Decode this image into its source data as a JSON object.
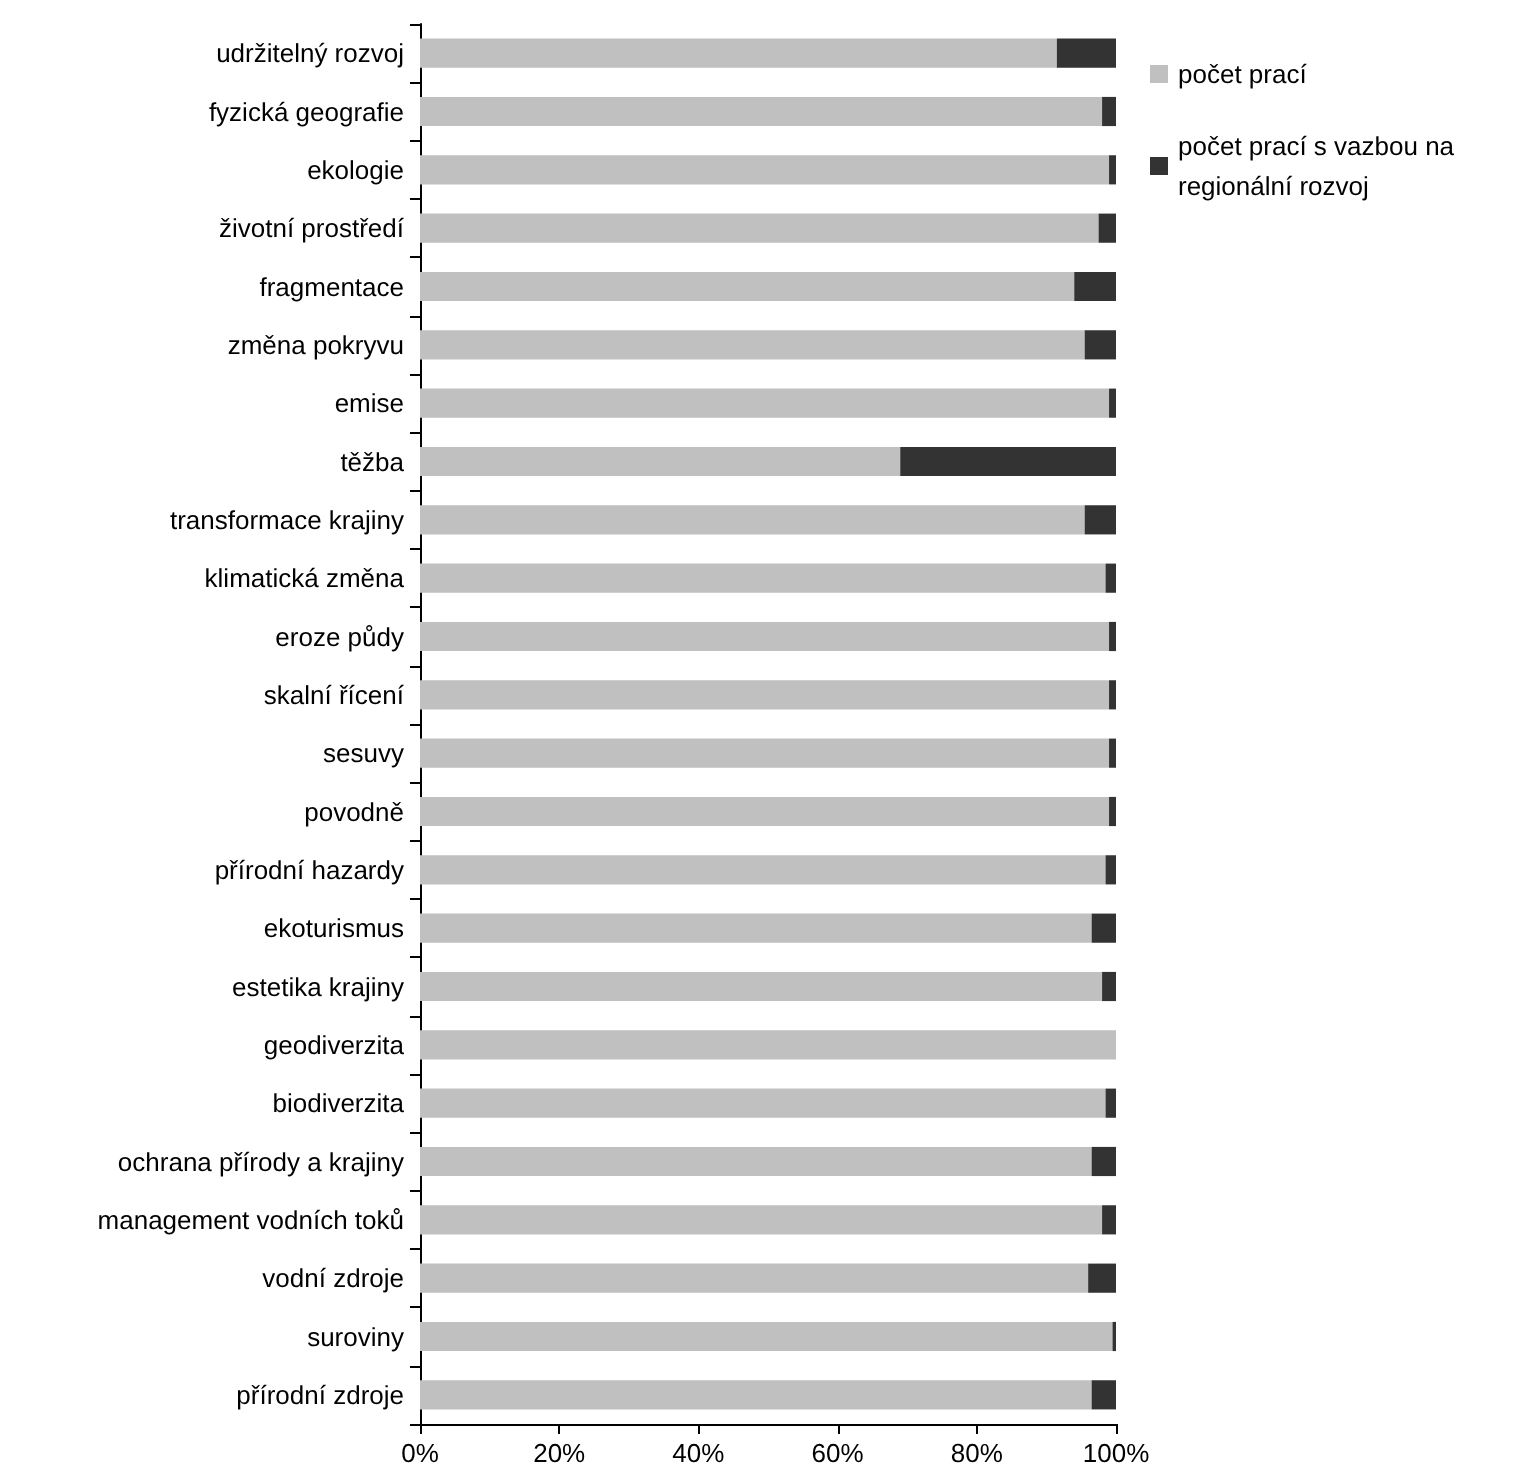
{
  "chart_data": {
    "type": "bar",
    "orientation": "horizontal",
    "stacked": true,
    "categories": [
      "udržitelný rozvoj",
      "fyzická geografie",
      "ekologie",
      "životní prostředí",
      "fragmentace",
      "změna pokryvu",
      "emise",
      "těžba",
      "transformace krajiny",
      "klimatická změna",
      "eroze půdy",
      "skalní řícení",
      "sesuvy",
      "povodně",
      "přírodní hazardy",
      "ekoturismus",
      "estetika krajiny",
      "geodiverzita",
      "biodiverzita",
      "ochrana přírody a krajiny",
      "management vodních toků",
      "vodní zdroje",
      "suroviny",
      "přírodní zdroje"
    ],
    "series": [
      {
        "name": "počet prací",
        "color": "#c0c0c0",
        "values": [
          91.5,
          98,
          99,
          97.5,
          94,
          95.5,
          99,
          69,
          95.5,
          98.5,
          99,
          99,
          99,
          99,
          98.5,
          96.5,
          98,
          100,
          98.5,
          96.5,
          98,
          96,
          99.5,
          96.5
        ]
      },
      {
        "name": "počet prací s vazbou na regionální rozvoj",
        "color": "#333333",
        "values": [
          8.5,
          2,
          1,
          2.5,
          6,
          4.5,
          1,
          31,
          4.5,
          1.5,
          1,
          1,
          1,
          1,
          1.5,
          3.5,
          2,
          0,
          1.5,
          3.5,
          2,
          4,
          0.5,
          3.5
        ]
      }
    ],
    "xlim": [
      0,
      100
    ],
    "xticks": [
      {
        "value": 0,
        "label": "0%"
      },
      {
        "value": 20,
        "label": "20%"
      },
      {
        "value": 40,
        "label": "40%"
      },
      {
        "value": 60,
        "label": "60%"
      },
      {
        "value": 80,
        "label": "80%"
      },
      {
        "value": 100,
        "label": "100%"
      }
    ],
    "legend": "top right",
    "grid": false
  }
}
